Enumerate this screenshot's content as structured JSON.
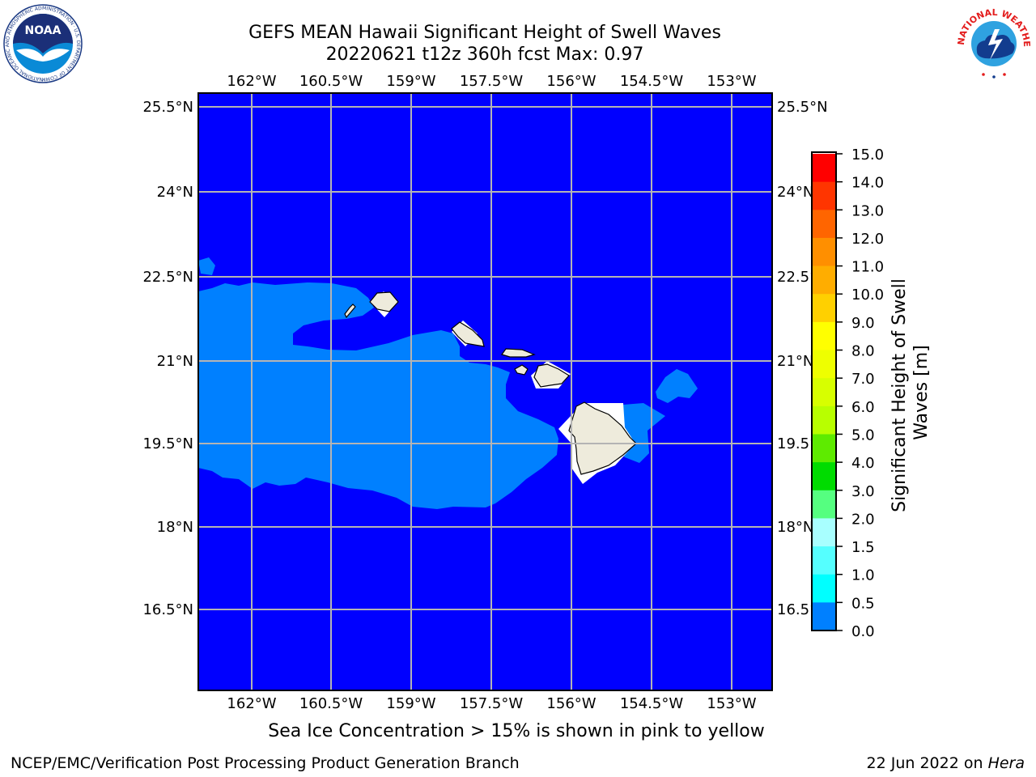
{
  "header": {
    "title_line1": "GEFS MEAN Hawaii Significant Height of Swell Waves",
    "title_line2": "20220621 t12z 360h fcst   Max: 0.97"
  },
  "logos": {
    "noaa_word": "NOAA",
    "noaa_ring_text": "NATIONAL OCEANIC AND ATMOSPHERIC ADMINISTRATION · U.S. DEPARTMENT OF COMMERCE",
    "nws_ring_text": "NATIONAL WEATHER SERVICE"
  },
  "map": {
    "lon_labels": [
      "162°W",
      "160.5°W",
      "159°W",
      "157.5°W",
      "156°W",
      "154.5°W",
      "153°W"
    ],
    "lat_labels": [
      "25.5°N",
      "24°N",
      "22.5°N",
      "21°N",
      "19.5°N",
      "18°N",
      "16.5°N"
    ],
    "colors": {
      "ocean_low": "#0000ff",
      "ocean_mid": "#0080ff",
      "land": "#eeebdc",
      "grid": "#b4b4b4"
    }
  },
  "colorbar": {
    "label": "Significant Height of Swell Waves [m]",
    "ticks": [
      "15.0",
      "14.0",
      "13.0",
      "12.0",
      "11.0",
      "10.0",
      "9.0",
      "8.0",
      "7.0",
      "6.0",
      "5.0",
      "4.0",
      "3.0",
      "2.0",
      "1.5",
      "1.0",
      "0.5",
      "0.0"
    ],
    "colors": [
      "#ff0000",
      "#ff3500",
      "#ff6500",
      "#ff8f00",
      "#ffad00",
      "#ffd000",
      "#ffff00",
      "#eeff00",
      "#d7ff00",
      "#b8ff00",
      "#5eeb00",
      "#00dc00",
      "#55ff80",
      "#a8ffff",
      "#55ffff",
      "#00ffff",
      "#0080ff",
      "#0000ff"
    ]
  },
  "note": "Sea Ice Concentration > 15% is shown in pink to yellow",
  "footer": {
    "left": "NCEP/EMC/Verification Post Processing Product Generation Branch",
    "right_prefix": "22 Jun 2022 on ",
    "right_host": "Hera"
  }
}
